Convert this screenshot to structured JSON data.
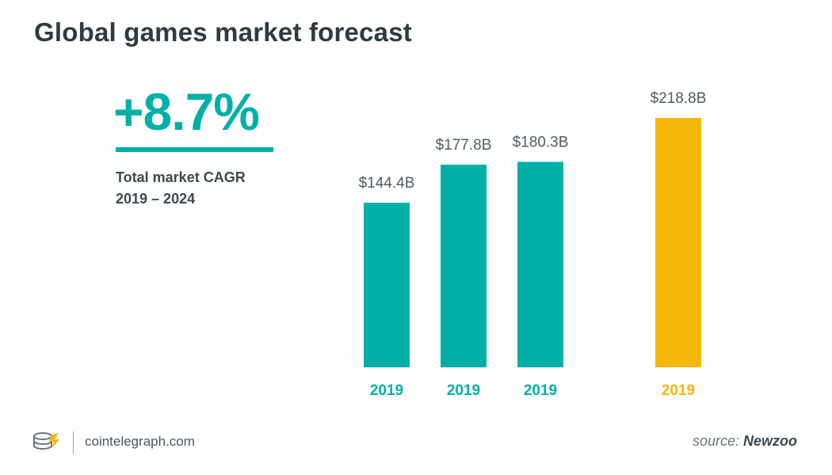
{
  "title": "Global games market forecast",
  "kpi": {
    "value": "+8.7%",
    "label_line1": "Total market CAGR",
    "label_line2": "2019 – 2024"
  },
  "colors": {
    "teal": "#00b0a7",
    "gold": "#f4b70c",
    "label_gray": "#4f5b63"
  },
  "chart_data": {
    "type": "bar",
    "title": "Global games market forecast",
    "categories": [
      "2019",
      "2019",
      "2019",
      "2019"
    ],
    "values": [
      144.4,
      177.8,
      180.3,
      218.8
    ],
    "value_labels": [
      "$144.4B",
      "$177.8B",
      "$180.3B",
      "$218.8B"
    ],
    "bar_colors": [
      "#00b0a7",
      "#00b0a7",
      "#00b0a7",
      "#f4b70c"
    ],
    "ylabel": "",
    "xlabel": "",
    "unit": "$B",
    "ylim": [
      0,
      218.8
    ],
    "grid": false,
    "legend": "none"
  },
  "footer": {
    "site": "cointelegraph.com",
    "source_prefix": "source:",
    "source_name": "Newzoo"
  }
}
